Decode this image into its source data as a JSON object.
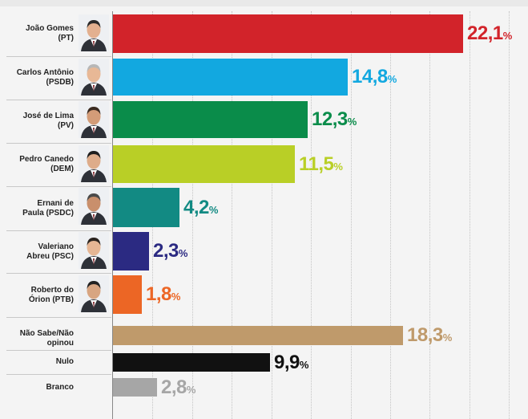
{
  "chart_data": {
    "type": "bar",
    "orientation": "horizontal",
    "xlim": [
      0,
      25
    ],
    "value_suffix": "%",
    "decimal_separator": ",",
    "categories": [
      {
        "label": [
          "João Gomes",
          "(PT)"
        ],
        "value": 22.1,
        "color": "#d2232a",
        "has_photo": true
      },
      {
        "label": [
          "Carlos Antônio",
          "(PSDB)"
        ],
        "value": 14.8,
        "color": "#12a8e0",
        "has_photo": true
      },
      {
        "label": [
          "José de Lima",
          "(PV)"
        ],
        "value": 12.3,
        "color": "#0a8c4a",
        "has_photo": true
      },
      {
        "label": [
          "Pedro Canedo",
          "(DEM)"
        ],
        "value": 11.5,
        "color": "#b9cf26",
        "has_photo": true
      },
      {
        "label": [
          "Ernani de",
          "Paula (PSDC)"
        ],
        "value": 4.2,
        "color": "#128a83",
        "has_photo": true
      },
      {
        "label": [
          "Valeriano",
          "Abreu (PSC)"
        ],
        "value": 2.3,
        "color": "#2b2a82",
        "has_photo": true
      },
      {
        "label": [
          "Roberto do",
          "Órion (PTB)"
        ],
        "value": 1.8,
        "color": "#ec6625",
        "has_photo": true
      },
      {
        "label": [
          "Não Sabe/Não opinou"
        ],
        "value": 18.3,
        "color": "#bf9a6b",
        "has_photo": false
      },
      {
        "label": [
          "Nulo"
        ],
        "value": 9.9,
        "color": "#111111",
        "has_photo": false
      },
      {
        "label": [
          "Branco"
        ],
        "value": 2.8,
        "color": "#a6a6a6",
        "has_photo": false
      }
    ]
  }
}
